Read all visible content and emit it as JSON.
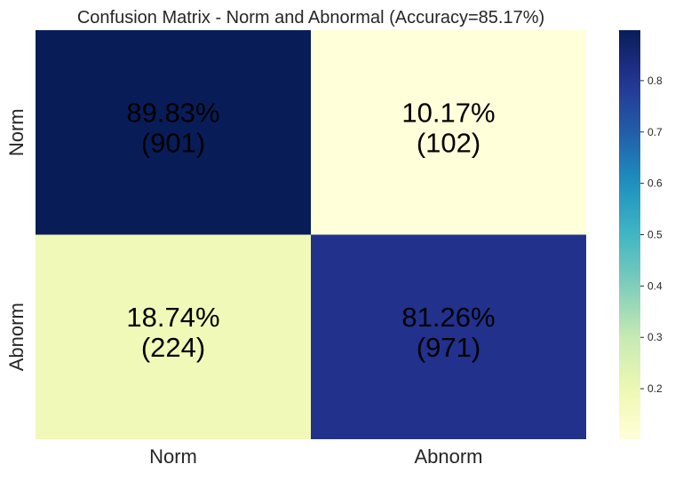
{
  "chart_data": {
    "type": "heatmap",
    "title": "Confusion Matrix - Norm and Abnormal (Accuracy=85.17%)",
    "row_labels": [
      "Norm",
      "Abnorm"
    ],
    "col_labels": [
      "Norm",
      "Abnorm"
    ],
    "values": [
      [
        0.8983,
        0.1017
      ],
      [
        0.1874,
        0.8126
      ]
    ],
    "annotations": [
      [
        "89.83%\n(901)",
        "10.17%\n(102)"
      ],
      [
        "18.74%\n(224)",
        "81.26%\n(971)"
      ]
    ],
    "colormap": "YlGnBu",
    "colorbar": {
      "range": [
        0.1017,
        0.8983
      ],
      "ticks": [
        0.2,
        0.3,
        0.4,
        0.5,
        0.6,
        0.7,
        0.8
      ],
      "tick_labels": [
        "0.2",
        "0.3",
        "0.4",
        "0.5",
        "0.6",
        "0.7",
        "0.8"
      ]
    },
    "grid": false
  }
}
